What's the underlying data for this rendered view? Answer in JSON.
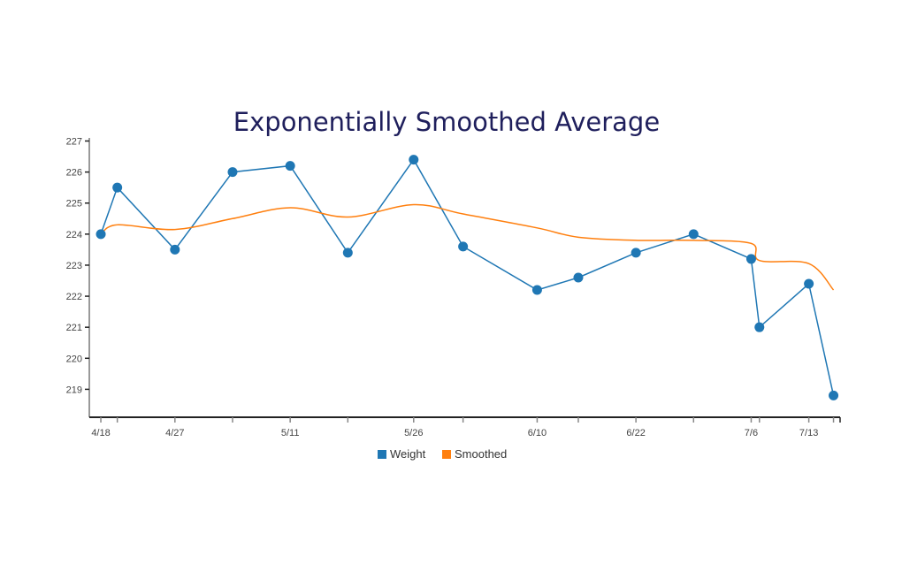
{
  "chart_data": {
    "type": "line",
    "title": "Exponentially Smoothed Average",
    "xlabel": "",
    "ylabel": "",
    "x": [
      "4/18",
      "4/20",
      "4/27",
      "5/4",
      "5/11",
      "5/18",
      "5/26",
      "6/1",
      "6/10",
      "6/15",
      "6/22",
      "6/29",
      "7/6",
      "7/7",
      "7/13",
      "7/16"
    ],
    "x_tick_labels": [
      "4/18",
      "4/27",
      "5/11",
      "5/26",
      "6/10",
      "6/22",
      "7/6",
      "7/13"
    ],
    "y_tick_labels": [
      "219",
      "220",
      "221",
      "222",
      "223",
      "224",
      "225",
      "226",
      "227"
    ],
    "xlim": [
      "4/16.6",
      "7/16.8"
    ],
    "ylim": [
      218.1,
      227.1
    ],
    "grid": false,
    "legend_position": "bottom",
    "series": [
      {
        "name": "Weight",
        "color": "#1f77b4",
        "markers": true,
        "values": [
          224.0,
          225.5,
          223.5,
          226.0,
          226.2,
          223.4,
          226.4,
          223.6,
          222.2,
          222.6,
          223.4,
          224.0,
          223.2,
          221.0,
          222.4,
          218.8
        ]
      },
      {
        "name": "Smoothed",
        "color": "#ff7f0e",
        "markers": false,
        "values": [
          224.0,
          224.3,
          224.15,
          224.5,
          224.85,
          224.55,
          224.95,
          224.65,
          224.2,
          223.9,
          223.8,
          223.8,
          223.7,
          223.15,
          223.05,
          222.2
        ]
      }
    ]
  }
}
